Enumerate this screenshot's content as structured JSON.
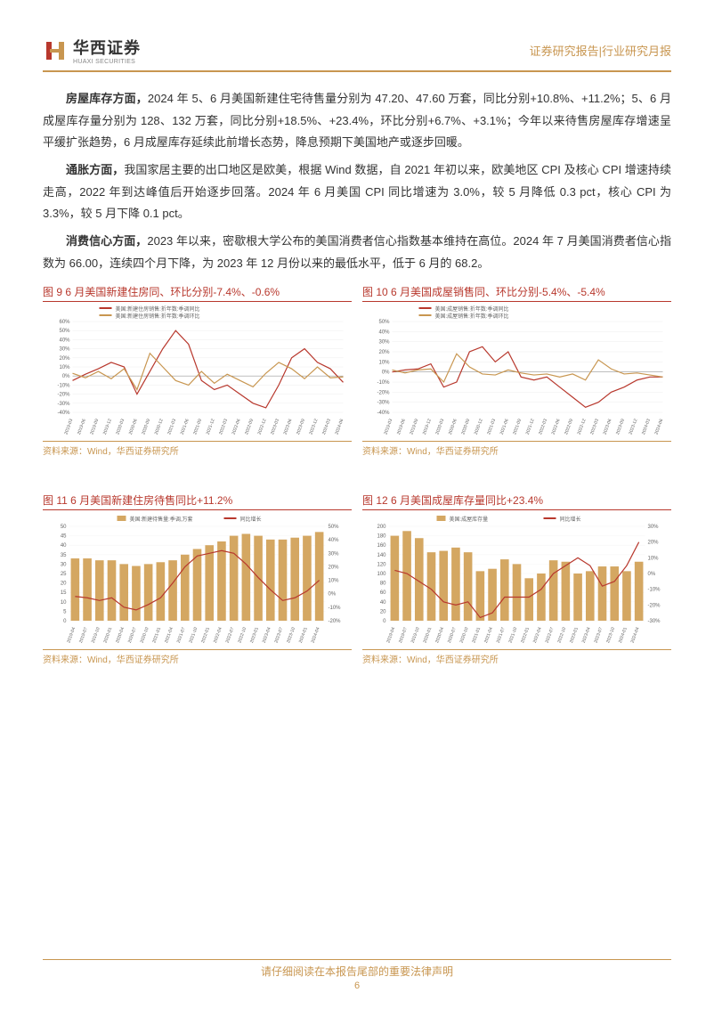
{
  "header": {
    "logo_cn": "华西证券",
    "logo_en": "HUAXI SECURITIES",
    "right_text": "证券研究报告|行业研究月报"
  },
  "paragraphs": {
    "p1_lead": "房屋库存方面，",
    "p1_body": "2024 年 5、6 月美国新建住宅待售量分别为 47.20、47.60 万套，同比分别+10.8%、+11.2%；5、6 月成屋库存量分别为 128、132 万套，同比分别+18.5%、+23.4%，环比分别+6.7%、+3.1%；今年以来待售房屋库存增速呈平缓扩张趋势，6 月成屋库存延续此前增长态势，降息预期下美国地产或逐步回暖。",
    "p2_lead": "通胀方面，",
    "p2_body": "我国家居主要的出口地区是欧美，根据 Wind 数据，自 2021 年初以来，欧美地区 CPI 及核心 CPI 增速持续走高，2022 年到达峰值后开始逐步回落。2024 年 6 月美国 CPI 同比增速为 3.0%，较 5 月降低 0.3 pct，核心 CPI 为 3.3%，较 5 月下降 0.1 pct。",
    "p3_lead": "消费信心方面，",
    "p3_body": "2023 年以来，密歇根大学公布的美国消费者信心指数基本维持在高位。2024 年 7 月美国消费者信心指数为 66.00，连续四个月下降，为 2023 年 12 月份以来的最低水平，低于 6 月的 68.2。"
  },
  "charts": {
    "chart9": {
      "title": "图 9 6 月美国新建住房同、环比分别-7.4%、-0.6%",
      "type": "line",
      "legend": [
        "美国:新建住房销售:折年数:季调同比",
        "美国:新建住房销售:折年数:季调环比"
      ],
      "legend_colors": [
        "#b8382d",
        "#c89650"
      ],
      "y_ticks": [
        "-40%",
        "-30%",
        "-20%",
        "-10%",
        "0%",
        "10%",
        "20%",
        "30%",
        "40%",
        "50%",
        "60%"
      ],
      "ylim": [
        -40,
        60
      ],
      "x_labels": [
        "2019-03",
        "2019-06",
        "2019-09",
        "2019-12",
        "2020-03",
        "2020-06",
        "2020-09",
        "2020-12",
        "2021-03",
        "2021-06",
        "2021-09",
        "2021-12",
        "2022-03",
        "2022-06",
        "2022-09",
        "2022-12",
        "2023-03",
        "2023-06",
        "2023-09",
        "2023-12",
        "2024-03",
        "2024-06"
      ],
      "series1_color": "#b8382d",
      "series2_color": "#c89650",
      "series1": [
        -5,
        2,
        8,
        15,
        10,
        -20,
        5,
        30,
        50,
        35,
        -5,
        -15,
        -10,
        -20,
        -30,
        -35,
        -10,
        20,
        30,
        15,
        8,
        -7
      ],
      "series2": [
        3,
        -2,
        5,
        -3,
        8,
        -15,
        25,
        10,
        -5,
        -10,
        5,
        -8,
        2,
        -5,
        -12,
        3,
        15,
        8,
        -3,
        10,
        -2,
        -1
      ],
      "source": "资料来源：Wind，华西证券研究所"
    },
    "chart10": {
      "title": "图 10 6 月美国成屋销售同、环比分别-5.4%、-5.4%",
      "type": "line",
      "legend": [
        "美国:成屋销售:折年数:季调同比",
        "美国:成屋销售:折年数:季调环比"
      ],
      "legend_colors": [
        "#b8382d",
        "#c89650"
      ],
      "y_ticks": [
        "-40%",
        "-30%",
        "-20%",
        "-10%",
        "0%",
        "10%",
        "20%",
        "30%",
        "40%",
        "50%"
      ],
      "ylim": [
        -40,
        50
      ],
      "x_labels": [
        "2019-03",
        "2019-06",
        "2019-09",
        "2019-12",
        "2020-03",
        "2020-06",
        "2020-09",
        "2020-12",
        "2021-03",
        "2021-06",
        "2021-09",
        "2021-12",
        "2022-03",
        "2022-06",
        "2022-09",
        "2022-12",
        "2023-03",
        "2023-06",
        "2023-09",
        "2023-12",
        "2024-03",
        "2024-06"
      ],
      "series1_color": "#b8382d",
      "series2_color": "#c89650",
      "series1": [
        0,
        2,
        3,
        8,
        -15,
        -10,
        20,
        25,
        10,
        20,
        -5,
        -8,
        -5,
        -15,
        -25,
        -35,
        -30,
        -20,
        -15,
        -8,
        -5,
        -5
      ],
      "series2": [
        2,
        -1,
        2,
        3,
        -10,
        18,
        5,
        -2,
        -3,
        2,
        -1,
        -3,
        -2,
        -5,
        -2,
        -8,
        12,
        3,
        -2,
        -1,
        -3,
        -5
      ],
      "source": "资料来源：Wind，华西证券研究所"
    },
    "chart11": {
      "title": "图 11 6 月美国新建住房待售同比+11.2%",
      "type": "combo",
      "legend": [
        "美国:新建待售量:季调,万套",
        "同比增长"
      ],
      "legend_colors": [
        "#c89650",
        "#b8382d"
      ],
      "y_left_ticks": [
        "0",
        "5",
        "10",
        "15",
        "20",
        "25",
        "30",
        "35",
        "40",
        "45",
        "50"
      ],
      "y_left_lim": [
        0,
        50
      ],
      "y_right_ticks": [
        "-20%",
        "-10%",
        "0%",
        "10%",
        "20%",
        "30%",
        "40%",
        "50%"
      ],
      "y_right_lim": [
        -20,
        50
      ],
      "x_labels": [
        "2019-04",
        "2019-07",
        "2019-10",
        "2020-01",
        "2020-04",
        "2020-07",
        "2020-10",
        "2021-01",
        "2021-04",
        "2021-07",
        "2021-10",
        "2022-01",
        "2022-04",
        "2022-07",
        "2022-10",
        "2023-01",
        "2023-04",
        "2023-07",
        "2023-10",
        "2024-01",
        "2024-04"
      ],
      "bars_color": "#d4a762",
      "bars": [
        33,
        33,
        32,
        32,
        30,
        29,
        30,
        31,
        32,
        35,
        38,
        40,
        42,
        45,
        46,
        45,
        43,
        43,
        44,
        45,
        47
      ],
      "line_color": "#b8382d",
      "line": [
        -2,
        -3,
        -5,
        -3,
        -10,
        -12,
        -8,
        -3,
        8,
        20,
        28,
        30,
        32,
        30,
        22,
        12,
        3,
        -5,
        -3,
        2,
        10
      ],
      "source": "资料来源：Wind，华西证券研究所"
    },
    "chart12": {
      "title": "图 12 6 月美国成屋库存量同比+23.4%",
      "type": "combo",
      "legend": [
        "美国:成屋库存量",
        "同比增长"
      ],
      "legend_colors": [
        "#c89650",
        "#b8382d"
      ],
      "y_left_ticks": [
        "0",
        "20",
        "40",
        "60",
        "80",
        "100",
        "120",
        "140",
        "160",
        "180",
        "200"
      ],
      "y_left_lim": [
        0,
        200
      ],
      "y_right_ticks": [
        "-30%",
        "-20%",
        "-10%",
        "0%",
        "10%",
        "20%",
        "30%"
      ],
      "y_right_lim": [
        -30,
        30
      ],
      "x_labels": [
        "2019-04",
        "2019-07",
        "2019-10",
        "2020-01",
        "2020-04",
        "2020-07",
        "2020-10",
        "2021-01",
        "2021-04",
        "2021-07",
        "2021-10",
        "2022-01",
        "2022-04",
        "2022-07",
        "2022-10",
        "2023-01",
        "2023-04",
        "2023-07",
        "2023-10",
        "2024-01",
        "2024-04"
      ],
      "bars_color": "#d4a762",
      "bars": [
        180,
        190,
        175,
        145,
        148,
        155,
        145,
        105,
        110,
        130,
        120,
        90,
        100,
        128,
        125,
        100,
        105,
        115,
        115,
        105,
        125
      ],
      "line_color": "#b8382d",
      "line": [
        2,
        0,
        -5,
        -10,
        -18,
        -20,
        -18,
        -28,
        -25,
        -15,
        -15,
        -15,
        -10,
        0,
        5,
        10,
        5,
        -8,
        -5,
        5,
        20
      ],
      "source": "资料来源：Wind，华西证券研究所"
    }
  },
  "footer": {
    "text": "请仔细阅读在本报告尾部的重要法律声明",
    "page": "6"
  },
  "colors": {
    "brand": "#c89650",
    "accent": "#b8382d",
    "grid": "#e0e0e0",
    "text": "#333333"
  }
}
